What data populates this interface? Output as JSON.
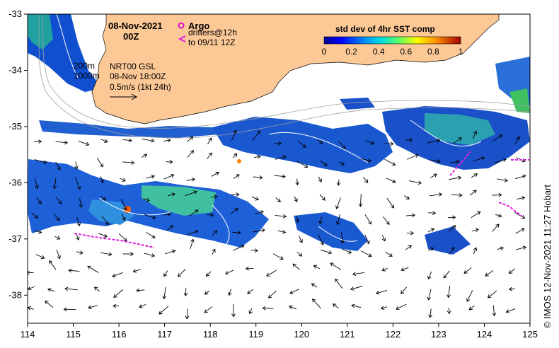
{
  "map": {
    "date": "08-Nov-2021",
    "time": "00Z",
    "lon_ticks": [
      "114",
      "115",
      "116",
      "117",
      "118",
      "119",
      "120",
      "121",
      "122",
      "123",
      "124",
      "125"
    ],
    "lat_ticks": [
      "-33",
      "-34",
      "-35",
      "-36",
      "-37",
      "-38"
    ],
    "lon_range": [
      114,
      125
    ],
    "lat_range": [
      -38.5,
      -33
    ],
    "land_color": "#fcc896",
    "coast_region": "Southwest Western Australia",
    "contours": {
      "line1": "200m",
      "line2": "1000m"
    },
    "currents": {
      "product": "NRT00 GSL",
      "datetime": "08-Nov 18:00Z",
      "scale": "0.5m/s (1kt 24h)"
    },
    "drifters": {
      "argo_label": "Argo",
      "argo_color": "#d400d4",
      "drifter_label_1": "drifters@12h",
      "drifter_label_2": "to 09/11 12Z",
      "drifter_color": "#e020e0"
    },
    "colorbar": {
      "title": "std dev of 4hr SST comp",
      "ticks": [
        "0",
        "0.2",
        "0.4",
        "0.6",
        "0.8",
        "1"
      ],
      "range": [
        0,
        1
      ]
    },
    "credit": "© IMOS 12-Nov-2021 11:27 Hobart"
  }
}
